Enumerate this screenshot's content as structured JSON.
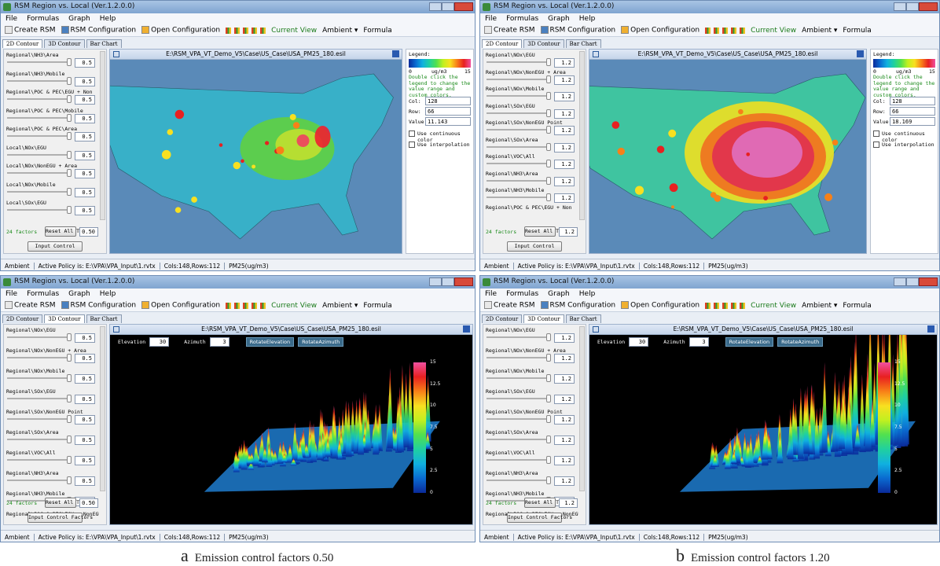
{
  "windows": [
    {
      "title": "RSM Region vs. Local (Ver.1.2.0.0)",
      "menu": [
        "File",
        "Formulas",
        "Graph",
        "Help"
      ],
      "toolbar": [
        "Create RSM",
        "RSM Configuration",
        "Open Configuration",
        "Current View",
        "Ambient ▾",
        "Formula"
      ],
      "tabs": [
        "2D Contour",
        "3D Contour",
        "Bar Chart"
      ],
      "factors": [
        {
          "label": "Regional\\NH3\\Area",
          "value": 0.5
        },
        {
          "label": "Regional\\NH3\\Mobile",
          "value": 0.5
        },
        {
          "label": "Regional\\POC & PEC\\EGU + Non",
          "value": 0.5
        },
        {
          "label": "Regional\\POC & PEC\\Mobile",
          "value": 0.5
        },
        {
          "label": "Regional\\POC & PEC\\Area",
          "value": 0.5
        },
        {
          "label": "Local\\NOx\\EGU",
          "value": 0.5
        },
        {
          "label": "Local\\NOx\\NonEGU + Area",
          "value": 0.5
        },
        {
          "label": "Local\\NOx\\Mobile",
          "value": 0.5
        },
        {
          "label": "Local\\SOx\\EGU",
          "value": 0.5
        }
      ],
      "factor_count": "24 factors",
      "reset_button": "Reset All To",
      "reset_value": "0.50",
      "control_button": "Input Control",
      "file_path": "E:\\RSM_VPA_VT_Demo_V5\\Case\\US_Case\\USA_PM25_180.esil",
      "legend": {
        "title": "Legend:",
        "min": 0,
        "unit": "ug/m3",
        "max": 15,
        "hint": "Double click the legend to change the value range and custom colors.",
        "col_label": "Col:",
        "col": 128,
        "row_label": "Row:",
        "row": 66,
        "value_label": "Value:",
        "value": 11.143,
        "continuous": "Use continuous color",
        "interpolation": "Use interpolation"
      },
      "status": [
        "Ambient",
        "Active Policy is: E:\\VPA\\VPA_Input\\1.rvtx",
        "Cols:148,Rows:112",
        "PM25(ug/m3)"
      ]
    },
    {
      "title": "RSM Region vs. Local (Ver.1.2.0.0)",
      "menu": [
        "File",
        "Formulas",
        "Graph",
        "Help"
      ],
      "toolbar": [
        "Create RSM",
        "RSM Configuration",
        "Open Configuration",
        "Current View",
        "Ambient ▾",
        "Formula"
      ],
      "tabs": [
        "2D Contour",
        "3D Contour",
        "Bar Chart"
      ],
      "factors": [
        {
          "label": "Regional\\NOx\\EGU",
          "value": 1.2
        },
        {
          "label": "Regional\\NOx\\NonEGU + Area",
          "value": 1.2
        },
        {
          "label": "Regional\\NOx\\Mobile",
          "value": 1.2
        },
        {
          "label": "Regional\\SOx\\EGU",
          "value": 1.2
        },
        {
          "label": "Regional\\SOx\\NonEGU Point",
          "value": 1.2
        },
        {
          "label": "Regional\\SOx\\Area",
          "value": 1.2
        },
        {
          "label": "Regional\\VOC\\All",
          "value": 1.2
        },
        {
          "label": "Regional\\NH3\\Area",
          "value": 1.2
        },
        {
          "label": "Regional\\NH3\\Mobile",
          "value": 1.2
        },
        {
          "label": "Regional\\POC & PEC\\EGU + Non"
        }
      ],
      "factor_count": "24 factors",
      "reset_button": "Reset All To",
      "reset_value": 1.2,
      "control_button": "Input Control",
      "file_path": "E:\\RSM_VPA_VT_Demo_V5\\Case\\US_Case\\USA_PM25_180.esil",
      "legend": {
        "title": "Legend:",
        "min": 0,
        "unit": "ug/m3",
        "max": 15,
        "hint": "Double click the legend to change the value range and custom colors.",
        "col_label": "Col:",
        "col": 128,
        "row_label": "Row:",
        "row": 66,
        "value_label": "Value:",
        "value": 18.169,
        "continuous": "Use continuous color",
        "interpolation": "Use interpolation"
      },
      "status": [
        "Ambient",
        "Active Policy is: E:\\VPA\\VPA_Input\\1.rvtx",
        "Cols:148,Rows:112",
        "PM25(ug/m3)"
      ]
    },
    {
      "title": "RSM Region vs. Local (Ver.1.2.0.0)",
      "menu": [
        "File",
        "Formulas",
        "Graph",
        "Help"
      ],
      "toolbar": [
        "Create RSM",
        "RSM Configuration",
        "Open Configuration",
        "Current View",
        "Ambient ▾",
        "Formula"
      ],
      "tabs": [
        "2D Contour",
        "3D Contour",
        "Bar Chart"
      ],
      "factors": [
        {
          "label": "Regional\\NOx\\EGU",
          "value": 0.5
        },
        {
          "label": "Regional\\NOx\\NonEGU + Area",
          "value": 0.5
        },
        {
          "label": "Regional\\NOx\\Mobile",
          "value": 0.5
        },
        {
          "label": "Regional\\SOx\\EGU",
          "value": 0.5
        },
        {
          "label": "Regional\\SOx\\NonEGU Point",
          "value": 0.5
        },
        {
          "label": "Regional\\SOx\\Area",
          "value": 0.5
        },
        {
          "label": "Regional\\VOC\\All",
          "value": 0.5
        },
        {
          "label": "Regional\\NH3\\Area",
          "value": 0.5
        },
        {
          "label": "Regional\\NH3\\Mobile",
          "value": 0.5
        },
        {
          "label": "Regional\\POC & PEC\\EGU + NonEGU"
        }
      ],
      "factor_count": "24 factors",
      "reset_button": "Reset All To",
      "reset_value": "0.50",
      "control_button": "Input Control Factors",
      "file_path": "E:\\RSM_VPA_VT_Demo_V5\\Case\\US_Case\\USA_PM25_180.esil",
      "view_controls": {
        "elevation_label": "Elevation",
        "elevation": 30,
        "azimuth_label": "Azimuth",
        "azimuth": 3,
        "rotate_elevation": "RotateElevation",
        "rotate_azimuth": "RotateAzimuth"
      },
      "colorbar_ticks": [
        15,
        12.5,
        10,
        7.5,
        5,
        2.5,
        0
      ],
      "status": [
        "Ambient",
        "Active Policy is: E:\\VPA\\VPA_Input\\1.rvtx",
        "Cols:148,Rows:112",
        "PM25(ug/m3)"
      ]
    },
    {
      "title": "RSM Region vs. Local (Ver.1.2.0.0)",
      "menu": [
        "File",
        "Formulas",
        "Graph",
        "Help"
      ],
      "toolbar": [
        "Create RSM",
        "RSM Configuration",
        "Open Configuration",
        "Current View",
        "Ambient ▾",
        "Formula"
      ],
      "tabs": [
        "2D Contour",
        "3D Contour",
        "Bar Chart"
      ],
      "factors": [
        {
          "label": "Regional\\NOx\\EGU",
          "value": 1.2
        },
        {
          "label": "Regional\\NOx\\NonEGU + Area",
          "value": 1.2
        },
        {
          "label": "Regional\\NOx\\Mobile",
          "value": 1.2
        },
        {
          "label": "Regional\\SOx\\EGU",
          "value": 1.2
        },
        {
          "label": "Regional\\SOx\\NonEGU Point",
          "value": 1.2
        },
        {
          "label": "Regional\\SOx\\Area",
          "value": 1.2
        },
        {
          "label": "Regional\\VOC\\All",
          "value": 1.2
        },
        {
          "label": "Regional\\NH3\\Area",
          "value": 1.2
        },
        {
          "label": "Regional\\NH3\\Mobile",
          "value": 1.2
        },
        {
          "label": "Regional\\POC & PEC\\EGU + NonEGU"
        }
      ],
      "factor_count": "24 factors",
      "reset_button": "Reset All To",
      "reset_value": 1.2,
      "control_button": "Input Control Factors",
      "file_path": "E:\\RSM_VPA_VT_Demo_V5\\Case\\US_Case\\USA_PM25_180.esil",
      "view_controls": {
        "elevation_label": "Elevation",
        "elevation": 30,
        "azimuth_label": "Azimuth",
        "azimuth": 3,
        "rotate_elevation": "RotateElevation",
        "rotate_azimuth": "RotateAzimuth"
      },
      "colorbar_ticks": [
        15,
        12.5,
        10,
        7.5,
        5,
        2.5,
        0
      ],
      "status": [
        "Ambient",
        "Active Policy is: E:\\VPA\\VPA_Input\\1.rvtx",
        "Cols:148,Rows:112",
        "PM25(ug/m3)"
      ]
    }
  ],
  "captions": [
    {
      "letter": "a",
      "text": "Emission control factors 0.50"
    },
    {
      "letter": "b",
      "text": "Emission control factors 1.20"
    }
  ]
}
